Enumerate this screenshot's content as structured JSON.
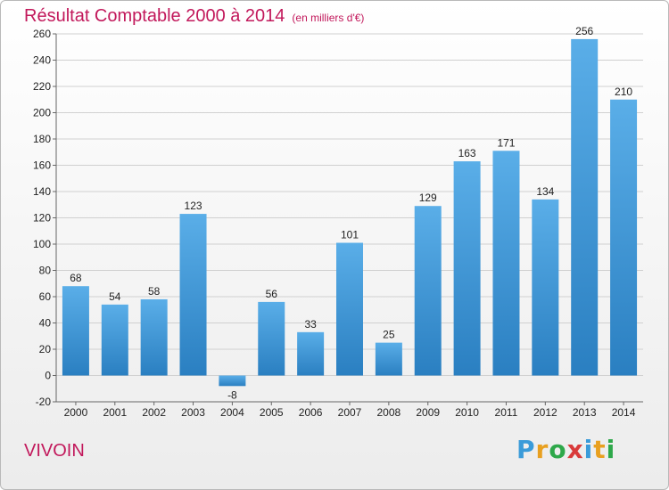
{
  "header": {
    "title": "Résultat Comptable 2000 à 2014",
    "unit": "(en milliers d'€)"
  },
  "footer": {
    "commune": "VIVOIN",
    "logo_letters": [
      "P",
      "r",
      "o",
      "x",
      "i",
      "t",
      "i"
    ],
    "logo_colors": [
      "#3a9bd9",
      "#e8a020",
      "#2ea84a",
      "#d93a3a",
      "#3a9bd9",
      "#e8a020",
      "#2ea84a"
    ]
  },
  "chart_data": {
    "type": "bar",
    "categories": [
      "2000",
      "2001",
      "2002",
      "2003",
      "2004",
      "2005",
      "2006",
      "2007",
      "2008",
      "2009",
      "2010",
      "2011",
      "2012",
      "2013",
      "2014"
    ],
    "values": [
      68,
      54,
      58,
      123,
      -8,
      56,
      33,
      101,
      25,
      129,
      163,
      171,
      134,
      256,
      210
    ],
    "data_labels": [
      "68",
      "54",
      "58",
      "123",
      "-8",
      "56",
      "33",
      "101",
      "25",
      "129",
      "163",
      "171",
      "134",
      "256",
      "210"
    ],
    "yticks": [
      -20,
      0,
      20,
      40,
      60,
      80,
      100,
      120,
      140,
      160,
      180,
      200,
      220,
      240,
      260
    ],
    "ylim": [
      -20,
      260
    ],
    "grid": true,
    "bar_color_top": "#5aaee8",
    "bar_color_bottom": "#2a7fc1",
    "title": "Résultat Comptable 2000 à 2014",
    "xlabel": "",
    "ylabel": ""
  }
}
